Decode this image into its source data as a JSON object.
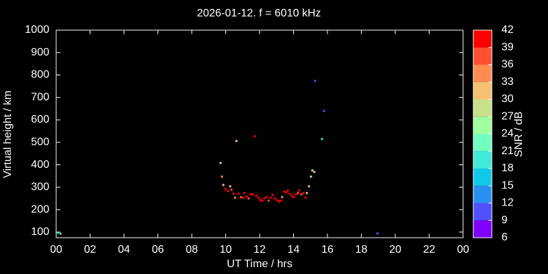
{
  "chart_data": {
    "type": "scatter",
    "title": "2026-01-12. f = 6010 kHz",
    "xlabel": "UT Time / hrs",
    "ylabel": "Virtual height / km",
    "xlim": [
      0,
      24
    ],
    "xticks": [
      {
        "value": 0,
        "label": "00"
      },
      {
        "value": 2,
        "label": "02"
      },
      {
        "value": 4,
        "label": "04"
      },
      {
        "value": 6,
        "label": "06"
      },
      {
        "value": 8,
        "label": "08"
      },
      10,
      12,
      14,
      16,
      18,
      20,
      22,
      {
        "value": 24,
        "label": "00"
      }
    ],
    "ylim": [
      75,
      1000
    ],
    "yticks": [
      100,
      200,
      300,
      400,
      500,
      600,
      700,
      800,
      900,
      1000
    ],
    "x": [
      0.1,
      0.25,
      9.7,
      9.78,
      9.86,
      9.98,
      10.14,
      10.26,
      10.34,
      10.46,
      10.55,
      10.63,
      10.75,
      10.9,
      11.03,
      11.1,
      11.23,
      11.35,
      11.47,
      11.6,
      11.72,
      11.8,
      11.92,
      12.04,
      12.16,
      12.28,
      12.4,
      12.53,
      12.65,
      12.77,
      12.89,
      13.01,
      13.13,
      13.25,
      13.33,
      13.45,
      13.58,
      13.66,
      13.78,
      13.9,
      14.02,
      14.14,
      14.26,
      14.34,
      14.46,
      14.59,
      14.71,
      14.79,
      14.91,
      15.03,
      15.11,
      15.23,
      15.27,
      15.68,
      15.8,
      18.95
    ],
    "y": [
      97,
      93,
      408,
      347,
      310,
      292,
      283,
      304,
      289,
      271,
      253,
      506,
      271,
      256,
      253,
      274,
      259,
      250,
      268,
      268,
      527,
      262,
      253,
      243,
      240,
      250,
      256,
      240,
      253,
      265,
      250,
      243,
      237,
      240,
      256,
      280,
      277,
      286,
      271,
      262,
      256,
      268,
      274,
      286,
      268,
      274,
      253,
      274,
      304,
      347,
      375,
      368,
      774,
      515,
      640,
      94
    ],
    "snr": [
      20,
      20,
      28,
      33,
      31,
      40,
      40,
      30,
      38,
      39,
      33,
      32,
      40,
      38,
      40,
      39,
      40,
      36,
      40,
      40,
      42,
      40,
      40,
      40,
      40,
      39,
      40,
      36,
      40,
      40,
      39,
      40,
      40,
      40,
      33,
      40,
      39,
      40,
      40,
      40,
      40,
      40,
      38,
      40,
      38,
      40,
      39,
      31,
      31,
      29,
      28,
      30,
      10,
      19,
      10,
      11
    ],
    "colorbar": {
      "label": "SNR / dB",
      "ticks": [
        6,
        9,
        12,
        15,
        18,
        21,
        24,
        27,
        30,
        33,
        36,
        39,
        42
      ],
      "colors": [
        "#8000ff",
        "#5050ff",
        "#2890f0",
        "#10c8e8",
        "#40e8d8",
        "#70ffc0",
        "#a0ffa0",
        "#c8e08a",
        "#f5c070",
        "#ff8c50",
        "#ff5030",
        "#ff0000"
      ]
    }
  }
}
